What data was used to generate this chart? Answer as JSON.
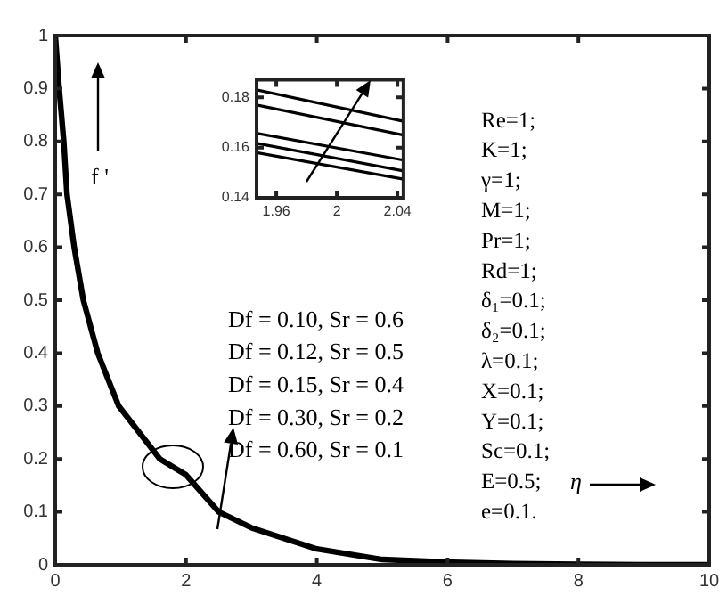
{
  "chart_data": [
    {
      "type": "line",
      "marker": "none",
      "x": [
        0,
        0.06,
        0.13,
        0.18,
        0.29,
        0.43,
        0.65,
        0.97,
        1.6,
        2,
        2.5,
        3,
        4,
        5,
        6,
        7,
        8,
        9,
        10
      ],
      "xlim": [
        0,
        10
      ],
      "ylim": [
        0,
        1
      ],
      "xticks": [
        0,
        2,
        4,
        6,
        8,
        10
      ],
      "yticks": [
        0,
        0.1,
        0.2,
        0.3,
        0.4,
        0.5,
        0.6,
        0.7,
        0.8,
        0.9,
        1
      ],
      "series": [
        {
          "color": "#000000",
          "values": [
            1,
            0.9,
            0.8,
            0.7,
            0.6,
            0.5,
            0.4,
            0.3,
            0.2,
            0.17,
            0.1,
            0.07,
            0.03,
            0.01,
            0.005,
            0.002,
            0.001,
            0,
            0
          ]
        }
      ],
      "annotations": [
        "f '",
        "η",
        "Re=1;",
        "K=1;",
        "γ=1;",
        "M=1;",
        "Pr=1;",
        "Rd=1;",
        "δ₁=0.1;",
        "δ₂=0.1;",
        "λ=0.1;",
        "X=0.1;",
        "Y=0.1;",
        "Sc=0.1;",
        "E=0.5;",
        "e=0.1.",
        "Df = 0.10, Sr = 0.6",
        "Df = 0.12, Sr = 0.5",
        "Df = 0.15, Sr = 0.4",
        "Df = 0.30, Sr = 0.2",
        "Df = 0.60, Sr = 0.1"
      ]
    },
    {
      "type": "line",
      "marker": "none",
      "x": [
        1.947,
        2.044
      ],
      "xlim": [
        1.947,
        2.044
      ],
      "ylim": [
        0.14,
        0.187
      ],
      "xticks": [
        1.96,
        2,
        2.04
      ],
      "yticks": [
        0.14,
        0.16,
        0.18
      ],
      "series": [
        {
          "color": "#000000",
          "values": [
            0.183,
            0.1705
          ]
        },
        {
          "color": "#000000",
          "values": [
            0.177,
            0.165
          ]
        },
        {
          "color": "#000000",
          "values": [
            0.1657,
            0.155
          ]
        },
        {
          "color": "#000000",
          "values": [
            0.1617,
            0.1507
          ]
        },
        {
          "color": "#000000",
          "values": [
            0.158,
            0.1474
          ]
        }
      ]
    }
  ]
}
